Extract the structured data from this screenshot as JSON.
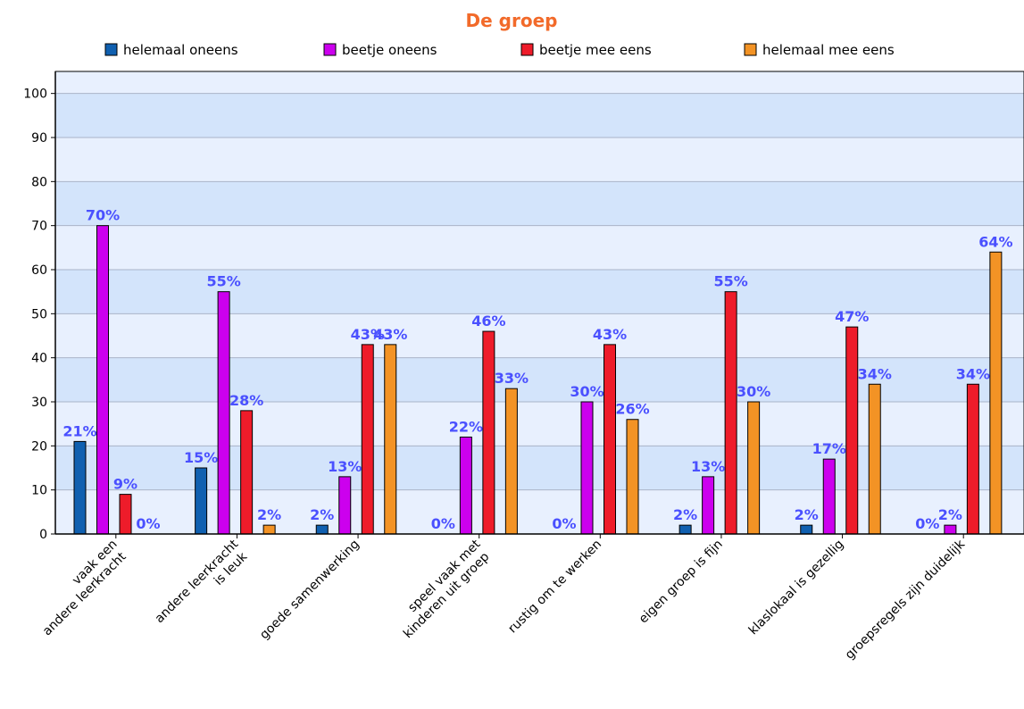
{
  "chart_data": {
    "type": "bar",
    "title": "De groep",
    "xlabel": "",
    "ylabel": "",
    "ylim": [
      0,
      105
    ],
    "yticks": [
      0,
      10,
      20,
      30,
      40,
      50,
      60,
      70,
      80,
      90,
      100
    ],
    "grid": true,
    "legend_position": "top",
    "categories": [
      [
        "vaak een",
        "andere leerkracht"
      ],
      [
        "andere leerkracht",
        "is leuk"
      ],
      [
        "goede samenwerking"
      ],
      [
        "speel vaak met",
        "kinderen uit groep"
      ],
      [
        "rustig om te werken"
      ],
      [
        "eigen groep is fijn"
      ],
      [
        "klaslokaal is gezellig"
      ],
      [
        "groepsregels zijn duidelijk"
      ]
    ],
    "series": [
      {
        "name": "helemaal oneens",
        "color": "#1060b0",
        "values": [
          21,
          15,
          2,
          0,
          0,
          2,
          2,
          0
        ],
        "labels": [
          "21%",
          "15%",
          "2%",
          "0%",
          "0%",
          "2%",
          "2%",
          "0%"
        ]
      },
      {
        "name": "beetje oneens",
        "color": "#cc00ee",
        "values": [
          70,
          55,
          13,
          22,
          30,
          13,
          17,
          2
        ],
        "labels": [
          "70%",
          "55%",
          "13%",
          "22%",
          "30%",
          "13%",
          "17%",
          "2%"
        ]
      },
      {
        "name": "beetje mee eens",
        "color": "#ee1c2a",
        "values": [
          9,
          28,
          43,
          46,
          43,
          55,
          47,
          34
        ],
        "labels": [
          "9%",
          "28%",
          "43%",
          "46%",
          "43%",
          "55%",
          "47%",
          "34%"
        ]
      },
      {
        "name": "helemaal mee eens",
        "color": "#f39325",
        "values": [
          0,
          2,
          43,
          33,
          26,
          30,
          34,
          64
        ],
        "labels": [
          "0%",
          "2%",
          "43%",
          "33%",
          "26%",
          "30%",
          "34%",
          "64%"
        ]
      }
    ],
    "colors": {
      "band_light": "#e8f0fe",
      "band_dark": "#d3e4fb",
      "gridline": "#aab4c8",
      "title": "#f26a2a",
      "data_label": "#4a50ff"
    }
  }
}
